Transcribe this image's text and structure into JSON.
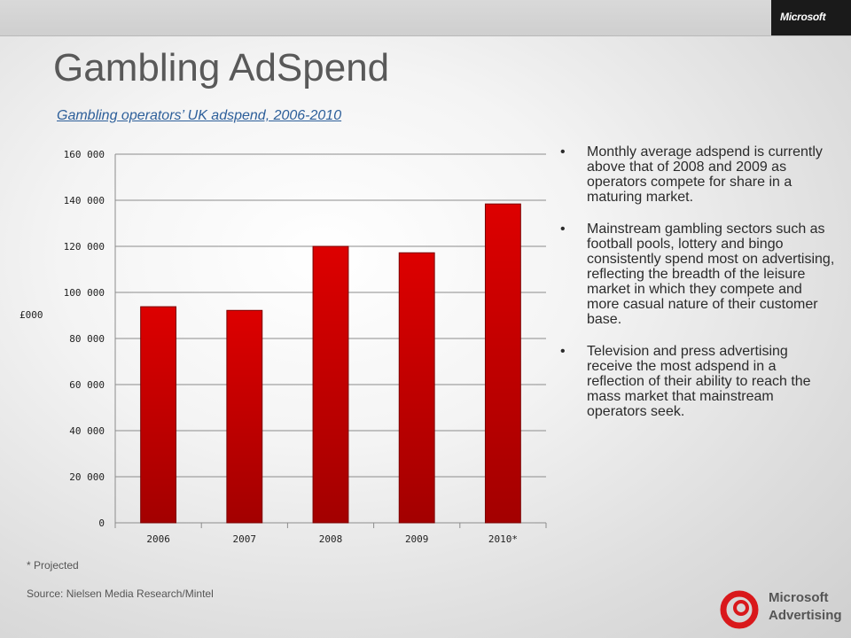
{
  "header": {
    "logo_text": "Microsoft"
  },
  "slide": {
    "title": "Gambling AdSpend",
    "subtitle": "Gambling operators’ UK adspend, 2006-2010",
    "bullets": [
      "Monthly average adspend is currently above that of  2008 and 2009 as operators compete for share in a maturing market.",
      "Mainstream gambling sectors such as football pools, lottery and bingo consistently spend most on advertising, reflecting the breadth of the leisure market in which they compete and more casual nature of their customer base.",
      "Television and press advertising receive the most adspend in a reflection of their ability to reach the mass market that mainstream operators seek."
    ],
    "bullet_glyph": "•",
    "footnote": "* Projected",
    "source": "Source: Nielsen Media Research/Mintel",
    "brand_line1": "Microsoft",
    "brand_line2": "Advertising",
    "brand_color": "#d9181b"
  },
  "chart_data": {
    "type": "bar",
    "categories": [
      "2006",
      "2007",
      "2008",
      "2009",
      "2010*"
    ],
    "values": [
      93800,
      92200,
      120000,
      117200,
      138400
    ],
    "ylabel": "£000",
    "ylim": [
      0,
      160000
    ],
    "yticks": [
      0,
      20000,
      40000,
      60000,
      80000,
      100000,
      120000,
      140000,
      160000
    ],
    "ytick_labels": [
      "0",
      "20 000",
      "40 000",
      "60 000",
      "80 000",
      "100 000",
      "120 000",
      "140 000",
      "160 000"
    ],
    "grid": true,
    "legend": "none",
    "bar_color": "#dd0000"
  }
}
